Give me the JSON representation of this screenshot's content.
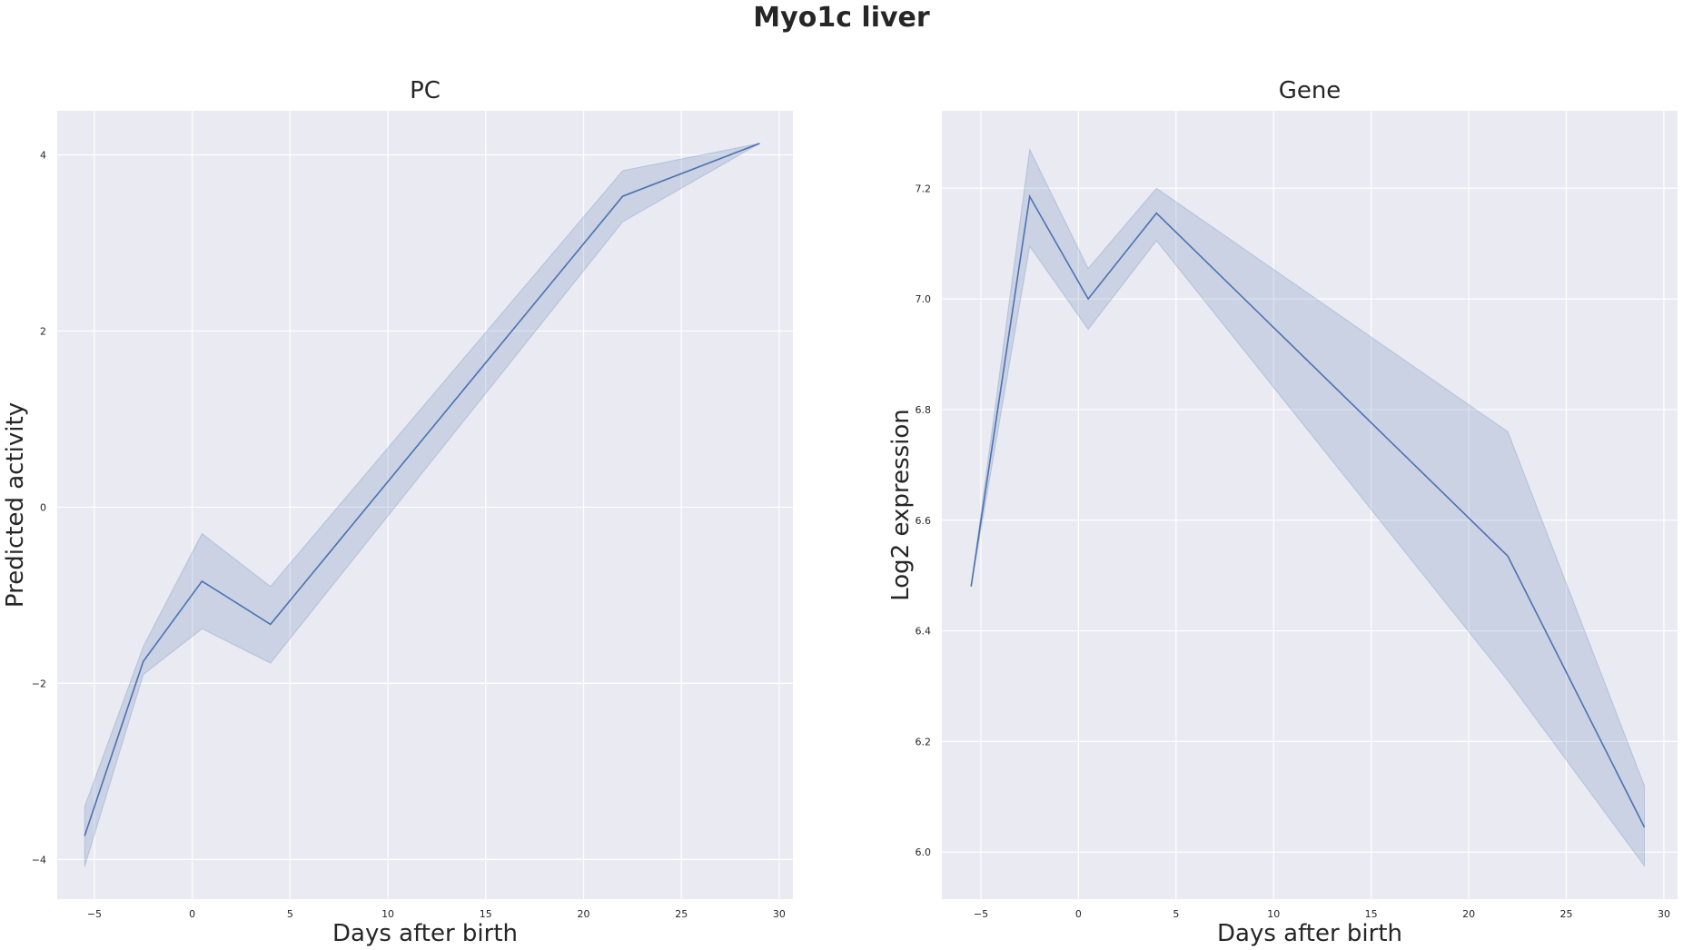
{
  "figure": {
    "title": "Myo1c liver"
  },
  "chart_data": [
    {
      "type": "line",
      "title": "PC",
      "xlabel": "Days after birth",
      "ylabel": "Predicted activity",
      "xlim": [
        -6.9,
        30.7
      ],
      "ylim": [
        -4.45,
        4.5
      ],
      "xticks": [
        -5,
        0,
        5,
        10,
        15,
        20,
        25,
        30
      ],
      "yticks": [
        -4,
        -2,
        0,
        2,
        4
      ],
      "ytick_labels": [
        "−4",
        "−2",
        "0",
        "2",
        "4"
      ],
      "grid": true,
      "color": "#4c72b0",
      "background": "#eaeaf2",
      "x": [
        -5.5,
        -2.5,
        0.5,
        4,
        22,
        29
      ],
      "y": [
        -3.73,
        -1.75,
        -0.84,
        -1.33,
        3.53,
        4.13
      ],
      "ci_lower": [
        -4.08,
        -1.9,
        -1.38,
        -1.77,
        3.24,
        4.13
      ],
      "ci_upper": [
        -3.4,
        -1.58,
        -0.3,
        -0.9,
        3.82,
        4.13
      ]
    },
    {
      "type": "line",
      "title": "Gene",
      "xlabel": "Days after birth",
      "ylabel": "Log2 expression",
      "xlim": [
        -7.0,
        30.7
      ],
      "ylim": [
        5.915,
        7.34
      ],
      "xticks": [
        -5,
        0,
        5,
        10,
        15,
        20,
        25,
        30
      ],
      "yticks": [
        6.0,
        6.2,
        6.4,
        6.6,
        6.8,
        7.0,
        7.2
      ],
      "ytick_labels": [
        "6.0",
        "6.2",
        "6.4",
        "6.6",
        "6.8",
        "7.0",
        "7.2"
      ],
      "grid": true,
      "color": "#4c72b0",
      "background": "#eaeaf2",
      "x": [
        -5.5,
        -2.5,
        0.5,
        4,
        22,
        29
      ],
      "y": [
        6.48,
        7.185,
        7.0,
        7.155,
        6.535,
        6.045
      ],
      "ci_lower": [
        6.48,
        7.095,
        6.945,
        7.105,
        6.31,
        5.975
      ],
      "ci_upper": [
        6.48,
        7.27,
        7.055,
        7.2,
        6.76,
        6.12
      ]
    }
  ]
}
